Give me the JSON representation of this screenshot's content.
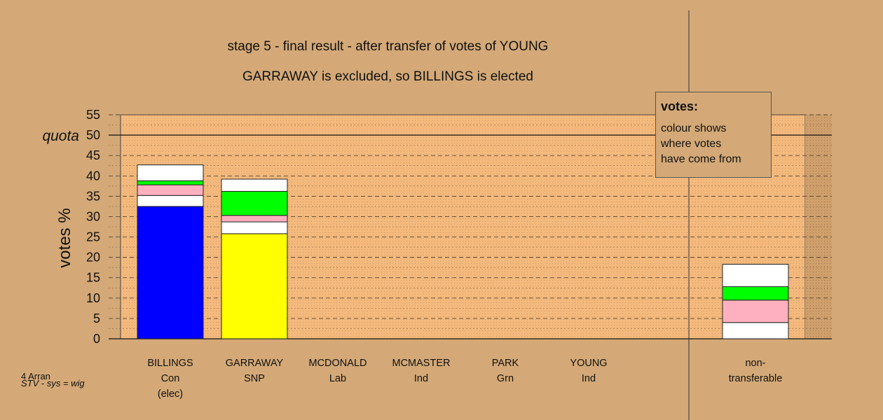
{
  "titles": {
    "line1": "stage 5 - final result - after transfer of votes of YOUNG",
    "line2": "GARRAWAY is excluded, so BILLINGS is elected"
  },
  "legend": {
    "title": "votes:",
    "lines": [
      "colour shows",
      "where votes",
      "have come from"
    ]
  },
  "footnote": {
    "line1": "4 Arran",
    "line2": "STV - sys = wig"
  },
  "colors": {
    "background": "#d4a977",
    "plot_area": "#f4b97c",
    "white": "#ffffff",
    "pink": "#ffb0c0",
    "green": "#00ff00",
    "blue": "#0000ff",
    "yellow": "#ffff00"
  },
  "chart_data": {
    "type": "bar",
    "stacked": true,
    "ylabel": "votes %",
    "ylim": [
      0,
      55
    ],
    "yticks": [
      0,
      5,
      10,
      15,
      20,
      25,
      30,
      35,
      40,
      45,
      50,
      55
    ],
    "quota": {
      "label": "quota",
      "value": 50
    },
    "categories": [
      {
        "name": "BILLINGS",
        "party": "Con",
        "note": "(elec)"
      },
      {
        "name": "GARRAWAY",
        "party": "SNP",
        "note": ""
      },
      {
        "name": "MCDONALD",
        "party": "Lab",
        "note": ""
      },
      {
        "name": "MCMASTER",
        "party": "Ind",
        "note": ""
      },
      {
        "name": "PARK",
        "party": "Grn",
        "note": ""
      },
      {
        "name": "YOUNG",
        "party": "Ind",
        "note": ""
      },
      {
        "name": "non-",
        "party": "transferable",
        "note": ""
      }
    ],
    "stacks": [
      [
        {
          "color": "blue",
          "value": 32.5
        },
        {
          "color": "white",
          "value": 2.7
        },
        {
          "color": "pink",
          "value": 2.6
        },
        {
          "color": "green",
          "value": 1.0
        },
        {
          "color": "white",
          "value": 3.9
        }
      ],
      [
        {
          "color": "yellow",
          "value": 25.8
        },
        {
          "color": "white",
          "value": 2.9
        },
        {
          "color": "pink",
          "value": 1.6
        },
        {
          "color": "green",
          "value": 5.9
        },
        {
          "color": "white",
          "value": 3.0
        }
      ],
      [],
      [],
      [],
      [],
      [
        {
          "color": "white",
          "value": 4.0
        },
        {
          "color": "pink",
          "value": 5.5
        },
        {
          "color": "green",
          "value": 3.3
        },
        {
          "color": "white",
          "value": 5.5
        }
      ]
    ]
  }
}
